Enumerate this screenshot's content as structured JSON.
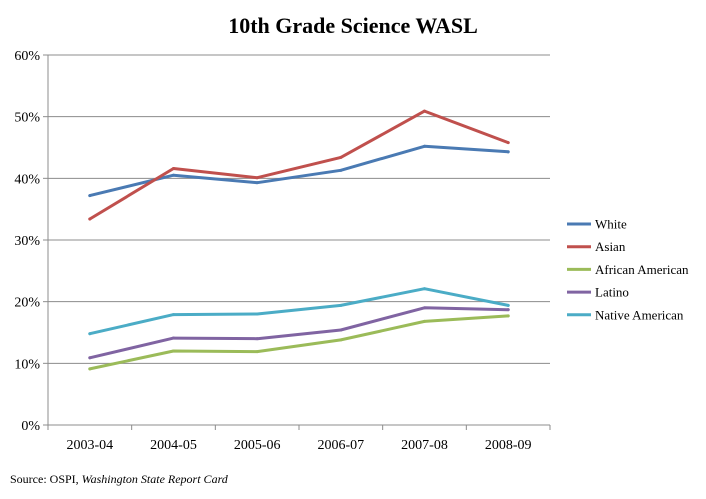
{
  "chart_data": {
    "type": "line",
    "title": "10th Grade Science WASL",
    "categories": [
      "2003-04",
      "2004-05",
      "2005-06",
      "2006-07",
      "2007-08",
      "2008-09"
    ],
    "ylim": [
      0,
      60
    ],
    "yticks": [
      0,
      10,
      20,
      30,
      40,
      50,
      60
    ],
    "y_tick_labels": [
      "0%",
      "10%",
      "20%",
      "30%",
      "40%",
      "50%",
      "60%"
    ],
    "grid": true,
    "legend_position": "right",
    "series": [
      {
        "name": "White",
        "color": "#4a7ab3",
        "values": [
          37.2,
          40.5,
          39.3,
          41.3,
          45.2,
          44.3
        ]
      },
      {
        "name": "Asian",
        "color": "#c0504d",
        "values": [
          33.4,
          41.6,
          40.1,
          43.4,
          50.9,
          45.8
        ]
      },
      {
        "name": "African American",
        "color": "#9bbb59",
        "values": [
          9.1,
          12.0,
          11.9,
          13.8,
          16.8,
          17.7
        ]
      },
      {
        "name": "Latino",
        "color": "#8064a2",
        "values": [
          10.9,
          14.1,
          14.0,
          15.4,
          19.0,
          18.7
        ]
      },
      {
        "name": "Native American",
        "color": "#4bacc6",
        "values": [
          14.8,
          17.9,
          18.0,
          19.4,
          22.1,
          19.4
        ]
      }
    ]
  },
  "source": {
    "prefix": "Source: OSPI, ",
    "italic": "Washington State Report Card"
  }
}
